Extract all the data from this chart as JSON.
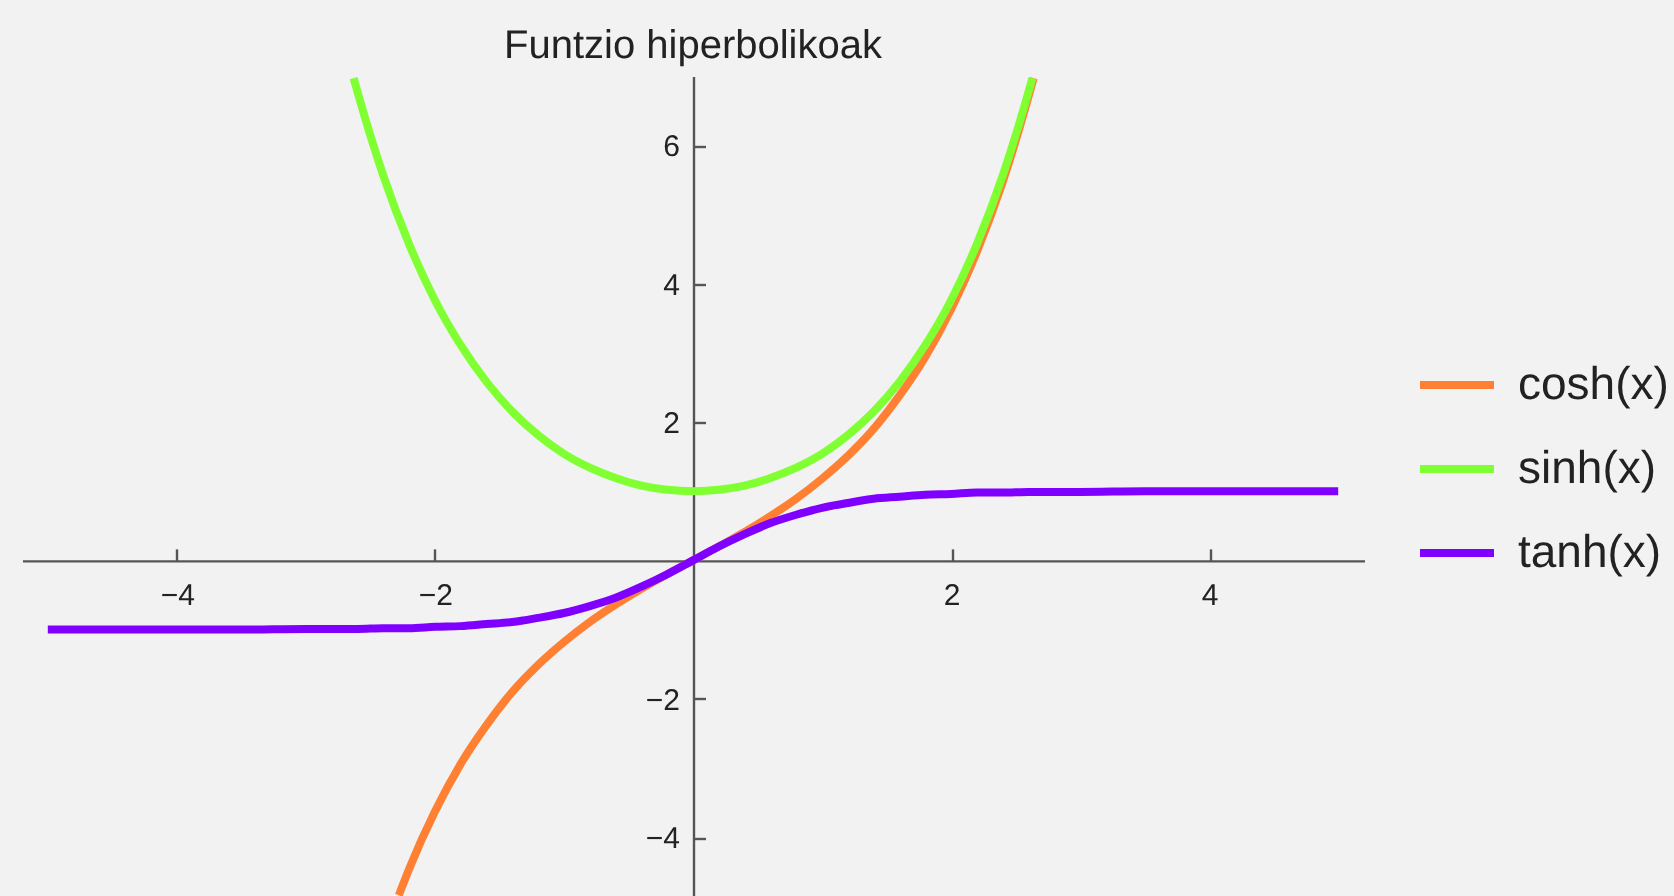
{
  "chart_data": {
    "type": "line",
    "title": "Funtzio hiperbolikoak",
    "xlim": [
      -5.2,
      5.2
    ],
    "ylim": [
      -4.85,
      7
    ],
    "xticks": [
      -4,
      -2,
      2,
      4
    ],
    "yticks": [
      -4,
      -2,
      2,
      4,
      6
    ],
    "legend": "right",
    "series": [
      {
        "name": "cosh(x)",
        "color": "#ff8033",
        "x": [
          -2.28,
          -2.2,
          -2,
          -1.8,
          -1.6,
          -1.4,
          -1.2,
          -1,
          -0.8,
          -0.6,
          -0.4,
          -0.2,
          0,
          0.2,
          0.4,
          0.6,
          0.8,
          1,
          1.2,
          1.4,
          1.6,
          1.8,
          2,
          2.2,
          2.4,
          2.6,
          2.64
        ],
        "values": [
          -4.84,
          -4.46,
          -3.63,
          -2.94,
          -2.38,
          -1.9,
          -1.51,
          -1.18,
          -0.89,
          -0.64,
          -0.41,
          -0.2,
          0,
          0.2,
          0.41,
          0.64,
          0.89,
          1.18,
          1.51,
          1.9,
          2.38,
          2.94,
          3.63,
          4.46,
          5.47,
          6.7,
          6.97
        ]
      },
      {
        "name": "sinh(x)",
        "color": "#80ff33",
        "x": [
          -2.63,
          -2.6,
          -2.4,
          -2.2,
          -2,
          -1.8,
          -1.6,
          -1.4,
          -1.2,
          -1,
          -0.8,
          -0.6,
          -0.4,
          -0.2,
          0,
          0.2,
          0.4,
          0.6,
          0.8,
          1,
          1.2,
          1.4,
          1.6,
          1.8,
          2,
          2.2,
          2.4,
          2.6,
          2.63
        ],
        "values": [
          6.97,
          6.77,
          5.56,
          4.57,
          3.76,
          3.11,
          2.58,
          2.15,
          1.81,
          1.54,
          1.34,
          1.19,
          1.08,
          1.02,
          1,
          1.02,
          1.08,
          1.19,
          1.34,
          1.54,
          1.81,
          2.15,
          2.58,
          3.11,
          3.76,
          4.57,
          5.56,
          6.77,
          6.97
        ]
      },
      {
        "name": "tanh(x)",
        "color": "#8000ff",
        "x": [
          -5,
          -4.5,
          -4,
          -3.5,
          -3,
          -2.8,
          -2.6,
          -2.4,
          -2.2,
          -2,
          -1.8,
          -1.6,
          -1.4,
          -1.2,
          -1,
          -0.8,
          -0.6,
          -0.4,
          -0.2,
          0,
          0.2,
          0.4,
          0.6,
          0.8,
          1,
          1.2,
          1.4,
          1.6,
          1.8,
          2,
          2.2,
          2.4,
          2.6,
          2.8,
          3,
          3.5,
          4,
          4.5,
          5
        ],
        "values": [
          -1,
          -1,
          -1,
          -1,
          -0.99,
          -0.99,
          -0.99,
          -0.98,
          -0.98,
          -0.96,
          -0.95,
          -0.92,
          -0.89,
          -0.83,
          -0.76,
          -0.66,
          -0.54,
          -0.38,
          -0.2,
          0,
          0.2,
          0.38,
          0.54,
          0.66,
          0.76,
          0.83,
          0.89,
          0.92,
          0.95,
          0.96,
          0.98,
          0.98,
          0.99,
          0.99,
          0.99,
          1,
          1,
          1,
          1
        ]
      }
    ]
  }
}
